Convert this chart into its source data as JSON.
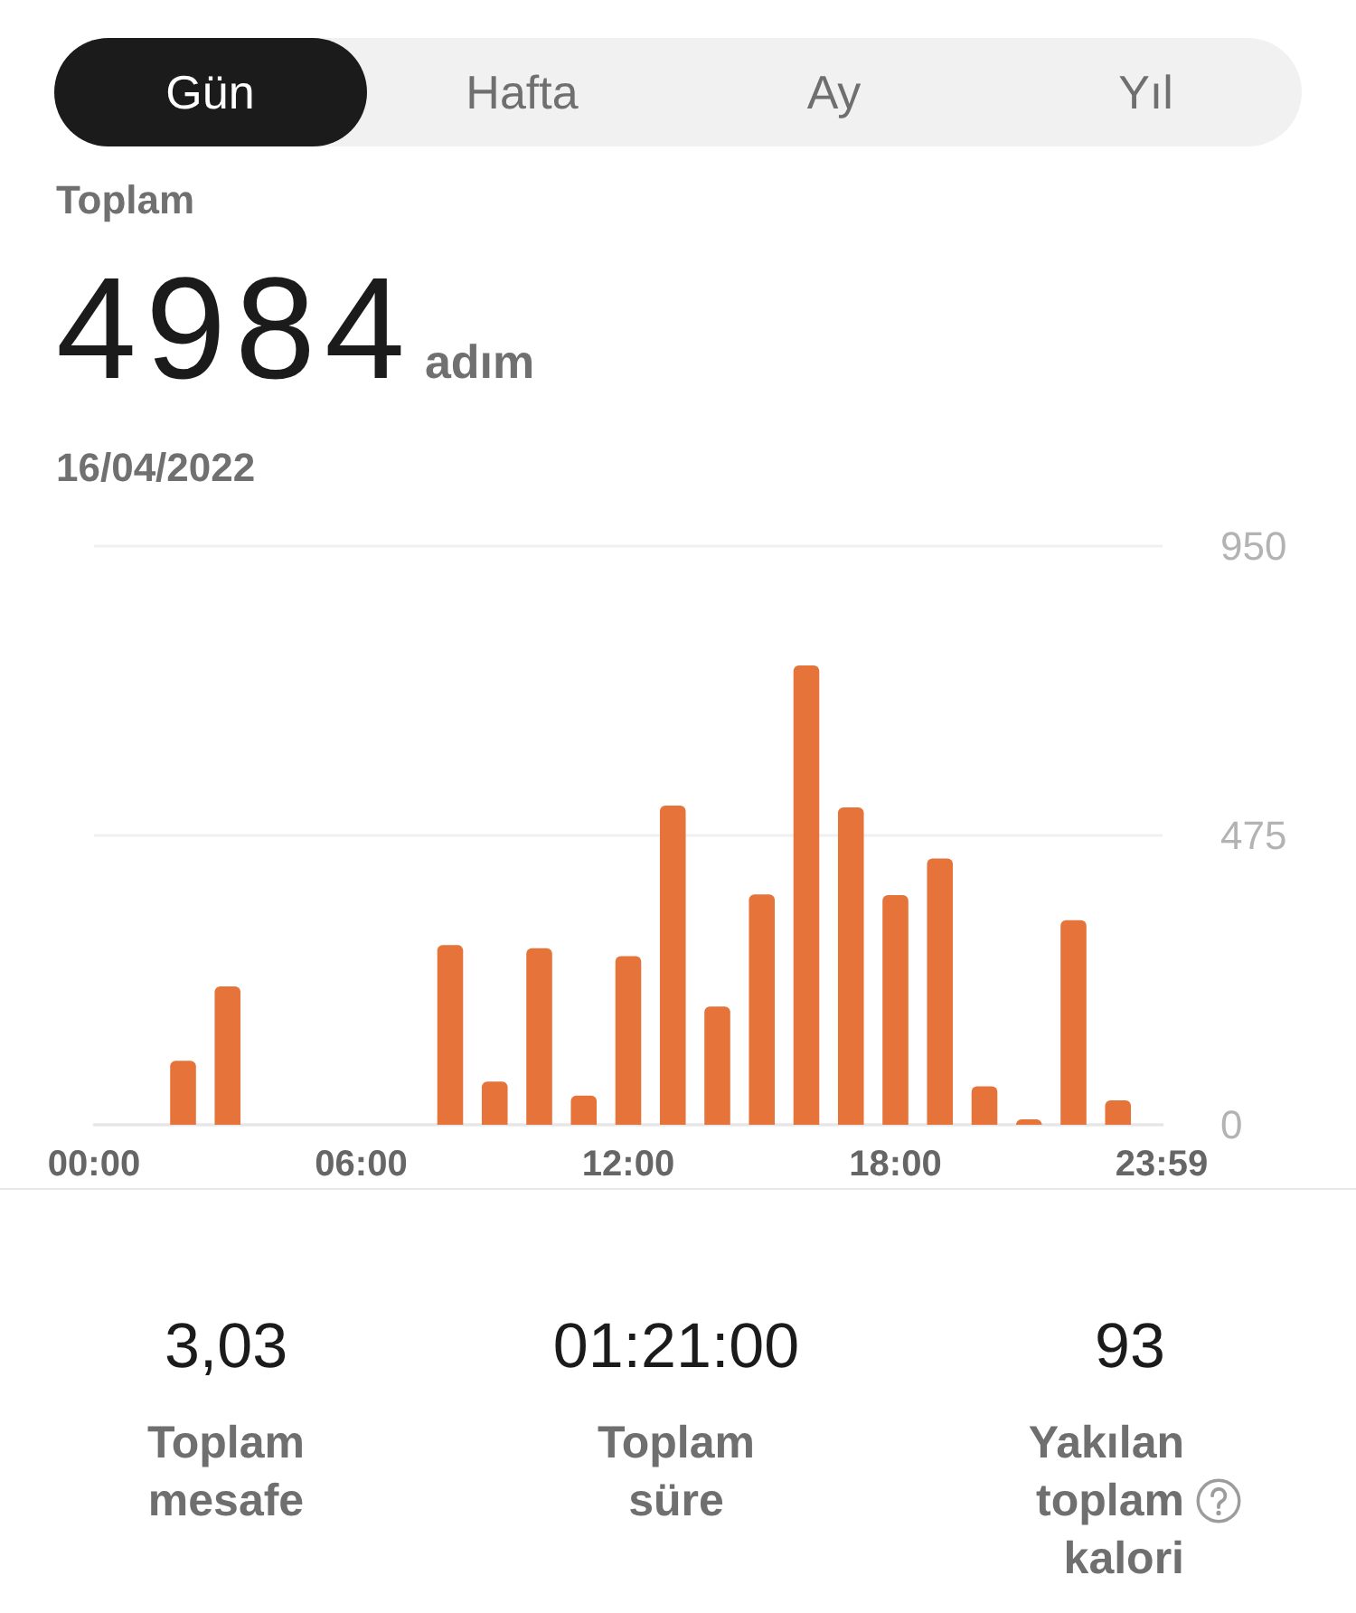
{
  "chart_data": {
    "type": "bar",
    "title": "Toplam",
    "subtitle": "16/04/2022",
    "annotations": [
      "Gün",
      "Hafta",
      "Ay",
      "Yıl",
      "4984",
      "adım",
      "3,03",
      "Toplam mesafe",
      "01:21:00",
      "Toplam süre",
      "93",
      "Yakılan toplam kalori"
    ],
    "x": [
      2,
      3,
      8,
      9,
      10,
      11,
      12,
      13,
      14,
      15,
      16,
      17,
      18,
      19,
      20,
      21,
      22,
      23
    ],
    "values": [
      105,
      227,
      295,
      71,
      290,
      48,
      277,
      524,
      194,
      378,
      754,
      521,
      377,
      437,
      63,
      9,
      336,
      40
    ],
    "color": "#e6733a",
    "xlim": [
      0,
      24
    ],
    "xticks": [
      {
        "value": 0,
        "label": "00:00"
      },
      {
        "value": 6,
        "label": "06:00"
      },
      {
        "value": 12,
        "label": "12:00"
      },
      {
        "value": 18,
        "label": "18:00"
      },
      {
        "value": 23.98,
        "label": "23:59"
      }
    ],
    "ylim": [
      0,
      950
    ],
    "yticks": [
      0,
      475,
      950
    ],
    "grid": "y"
  }
}
